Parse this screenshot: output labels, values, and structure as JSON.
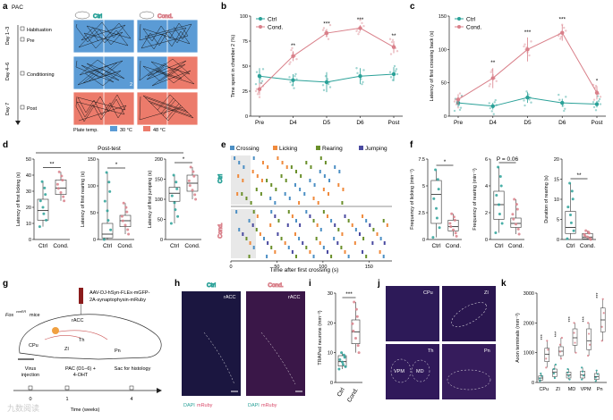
{
  "figure": {
    "panel_a": {
      "letter": "a",
      "title": "PAC",
      "days": [
        "Day 1–3",
        "Day 4–6",
        "Day 7"
      ],
      "phases": [
        "Habituation",
        "Pre",
        "Conditioning",
        "Post"
      ],
      "group_ctrl": "Ctrl",
      "group_cond": "Cond.",
      "plate_temp_label": "Plate temp.",
      "temp_cool": "30 °C",
      "temp_hot": "48 °C",
      "chamber_number": "2",
      "colors": {
        "cool": "#5b9bd5",
        "hot": "#ec7b6b"
      }
    },
    "panel_b": {
      "letter": "b",
      "legend_ctrl": "Ctrl",
      "legend_cond": "Cond.",
      "sig": [
        "**",
        "***",
        "***",
        "**"
      ]
    },
    "panel_c": {
      "letter": "c",
      "legend_ctrl": "Ctrl",
      "legend_cond": "Cond.",
      "sig": [
        "**",
        "***",
        "***",
        "*"
      ]
    },
    "panel_d": {
      "letter": "d",
      "title": "Post-test",
      "ylabels": [
        "Latency of first licking (s)",
        "Latency of first rearing (s)",
        "Latency of first jumping (s)"
      ],
      "xcats": [
        "Ctrl",
        "Cond."
      ],
      "sig": [
        "**",
        "*",
        "*"
      ]
    },
    "panel_e": {
      "letter": "e",
      "legend": [
        "Crossing",
        "Licking",
        "Rearing",
        "Jumping"
      ],
      "group_ctrl": "Ctrl",
      "group_cond": "Cond.",
      "xlabel": "Time after first crossing (s)",
      "xticks": [
        "0",
        "50",
        "100",
        "150"
      ],
      "colors": [
        "#4c8fc4",
        "#f08a3c",
        "#6a8f2a",
        "#4a4aa0"
      ]
    },
    "panel_f": {
      "letter": "f",
      "ylabels": [
        "Frequency of licking (min⁻¹)",
        "Frequency of rearing (min⁻¹)",
        "Duration of rearing (s)"
      ],
      "xcats": [
        "Ctrl",
        "Cond."
      ],
      "sig": [
        "*",
        "P = 0.06",
        "**"
      ]
    },
    "panel_g": {
      "letter": "g",
      "virus": "AAV-DJ-hSyn-FLEx-mGFP-",
      "virus2": "2A-synaptophysin-mRuby",
      "mice": "Fos",
      "mice_sup": "creER",
      "mice_suffix": " mice",
      "regions": [
        "rACC",
        "CPu",
        "Th",
        "ZI",
        "Pn"
      ],
      "tl_virus": "Virus",
      "tl_injection": "injection",
      "tl_pac": "PAC (D1–6) +",
      "tl_ohtt": "4-OHT",
      "tl_sac": "Sac for histology",
      "tl_ticks": [
        "0",
        "1",
        "4"
      ],
      "tl_xlabel": "Time (weeks)"
    },
    "panel_h": {
      "letter": "h",
      "ctrl": "Ctrl",
      "cond": "Cond.",
      "region": "rACC",
      "dapi": "DAPI",
      "mruby": "mRuby"
    },
    "panel_i": {
      "letter": "i",
      "ylabel": "TRAPed neurons (mm⁻²)",
      "xcats": [
        "Ctrl",
        "Cond."
      ],
      "sig": "***"
    },
    "panel_j": {
      "letter": "j",
      "regions": [
        "CPu",
        "ZI",
        "Th",
        "Pn"
      ],
      "subregions": [
        "VPM",
        "MD"
      ]
    },
    "panel_k": {
      "letter": "k",
      "ylabel": "Axon terminals (mm⁻²)",
      "xcats": [
        "CPu",
        "ZI",
        "MD",
        "VPM",
        "Pn"
      ],
      "sig": [
        "***",
        "***",
        "***",
        "***",
        "***"
      ]
    },
    "watermark": "九数阅读"
  },
  "chart_data": [
    {
      "panel": "b",
      "type": "line",
      "ylabel": "Time spent in chamber 2 (%)",
      "categories": [
        "Pre",
        "D4",
        "D5",
        "D6",
        "Post"
      ],
      "ylim": [
        0,
        100
      ],
      "yticks": [
        0,
        25,
        50,
        75,
        100
      ],
      "series": [
        {
          "name": "Ctrl",
          "values": [
            40,
            36,
            34,
            40,
            42
          ],
          "err": [
            8,
            6,
            10,
            8,
            7
          ]
        },
        {
          "name": "Cond.",
          "values": [
            27,
            60,
            83,
            88,
            69
          ],
          "err": [
            6,
            5,
            4,
            3,
            6
          ]
        }
      ]
    },
    {
      "panel": "c",
      "type": "line",
      "ylabel": "Latency of first crossing back (s)",
      "categories": [
        "Pre",
        "D4",
        "D5",
        "D6",
        "Post"
      ],
      "ylim": [
        0,
        150
      ],
      "yticks": [
        0,
        50,
        100,
        150
      ],
      "series": [
        {
          "name": "Ctrl",
          "values": [
            20,
            15,
            28,
            20,
            18
          ],
          "err": [
            6,
            5,
            8,
            6,
            5
          ]
        },
        {
          "name": "Cond.",
          "values": [
            25,
            57,
            100,
            125,
            35
          ],
          "err": [
            8,
            15,
            18,
            12,
            10
          ]
        }
      ]
    },
    {
      "panel": "d1",
      "type": "box",
      "ylabel": "Latency of first licking (s)",
      "categories": [
        "Ctrl",
        "Cond."
      ],
      "ylim": [
        0,
        50
      ],
      "yticks": [
        0,
        10,
        20,
        30,
        40,
        50
      ],
      "boxes": [
        {
          "q1": 12,
          "median": 18,
          "q3": 25,
          "min": 8,
          "max": 36
        },
        {
          "q1": 28,
          "median": 32,
          "q3": 37,
          "min": 24,
          "max": 42
        }
      ]
    },
    {
      "panel": "d2",
      "type": "box",
      "ylabel": "Latency of first rearing (s)",
      "categories": [
        "Ctrl",
        "Cond."
      ],
      "ylim": [
        0,
        150
      ],
      "yticks": [
        0,
        50,
        100,
        150
      ],
      "boxes": [
        {
          "q1": 3,
          "median": 10,
          "q3": 30,
          "min": 0,
          "max": 125
        },
        {
          "q1": 24,
          "median": 35,
          "q3": 45,
          "min": 10,
          "max": 68
        }
      ]
    },
    {
      "panel": "d3",
      "type": "box",
      "ylabel": "Latency of first jumping (s)",
      "categories": [
        "Ctrl",
        "Cond."
      ],
      "ylim": [
        0,
        200
      ],
      "yticks": [
        0,
        50,
        100,
        150,
        200
      ],
      "boxes": [
        {
          "q1": 95,
          "median": 115,
          "q3": 130,
          "min": 40,
          "max": 160
        },
        {
          "q1": 120,
          "median": 140,
          "q3": 160,
          "min": 100,
          "max": 180
        }
      ]
    },
    {
      "panel": "f1",
      "type": "box",
      "ylabel": "Frequency of licking (min⁻¹)",
      "categories": [
        "Ctrl",
        "Cond."
      ],
      "ylim": [
        0,
        7.5
      ],
      "yticks": [
        0,
        2.5,
        5.0,
        7.5
      ],
      "boxes": [
        {
          "q1": 1.5,
          "median": 4.2,
          "q3": 5.5,
          "min": 0.2,
          "max": 6.5
        },
        {
          "q1": 0.8,
          "median": 1.2,
          "q3": 1.8,
          "min": 0.3,
          "max": 2.4
        }
      ]
    },
    {
      "panel": "f2",
      "type": "box",
      "ylabel": "Frequency of rearing (min⁻¹)",
      "categories": [
        "Ctrl",
        "Cond."
      ],
      "ylim": [
        0,
        6
      ],
      "yticks": [
        0,
        2,
        4,
        6
      ],
      "boxes": [
        {
          "q1": 1.5,
          "median": 2.6,
          "q3": 3.6,
          "min": 0.5,
          "max": 5.4
        },
        {
          "q1": 0.9,
          "median": 1.2,
          "q3": 1.6,
          "min": 0.4,
          "max": 3.0
        }
      ]
    },
    {
      "panel": "f3",
      "type": "box",
      "ylabel": "Duration of rearing (s)",
      "categories": [
        "Ctrl",
        "Cond."
      ],
      "ylim": [
        0,
        20
      ],
      "yticks": [
        0,
        5,
        10,
        15,
        20
      ],
      "boxes": [
        {
          "q1": 1.5,
          "median": 3.0,
          "q3": 7.0,
          "min": 0.2,
          "max": 14.0
        },
        {
          "q1": 0.2,
          "median": 0.6,
          "q3": 1.5,
          "min": 0.0,
          "max": 2.2
        }
      ]
    },
    {
      "panel": "i",
      "type": "box",
      "ylabel": "TRAPed neurons (mm⁻²)",
      "categories": [
        "Ctrl",
        "Cond."
      ],
      "ylim": [
        0,
        30
      ],
      "yticks": [
        0,
        10,
        20,
        30
      ],
      "boxes": [
        {
          "q1": 5.5,
          "median": 7.0,
          "q3": 9.0,
          "min": 4.5,
          "max": 10
        },
        {
          "q1": 13,
          "median": 17,
          "q3": 21,
          "min": 10,
          "max": 27
        }
      ]
    },
    {
      "panel": "k",
      "type": "box",
      "ylabel": "Axon terminals (mm⁻²)",
      "categories": [
        "CPu",
        "ZI",
        "MD",
        "VPM",
        "Pn"
      ],
      "ylim": [
        0,
        3000
      ],
      "yticks": [
        0,
        1000,
        2000,
        3000
      ],
      "series": [
        {
          "name": "Ctrl",
          "boxes": [
            {
              "q1": 80,
              "median": 150,
              "q3": 220,
              "min": 50,
              "max": 300
            },
            {
              "q1": 200,
              "median": 350,
              "q3": 450,
              "min": 150,
              "max": 600
            },
            {
              "q1": 150,
              "median": 250,
              "q3": 350,
              "min": 100,
              "max": 450
            },
            {
              "q1": 150,
              "median": 250,
              "q3": 380,
              "min": 100,
              "max": 500
            },
            {
              "q1": 100,
              "median": 200,
              "q3": 300,
              "min": 50,
              "max": 400
            }
          ]
        },
        {
          "name": "Cond.",
          "boxes": [
            {
              "q1": 700,
              "median": 950,
              "q3": 1150,
              "min": 500,
              "max": 1400
            },
            {
              "q1": 900,
              "median": 1050,
              "q3": 1200,
              "min": 800,
              "max": 1500
            },
            {
              "q1": 1250,
              "median": 1500,
              "q3": 1800,
              "min": 1000,
              "max": 2000
            },
            {
              "q1": 1100,
              "median": 1400,
              "q3": 1800,
              "min": 900,
              "max": 2000
            },
            {
              "q1": 1700,
              "median": 2100,
              "q3": 2500,
              "min": 1400,
              "max": 2800
            }
          ]
        }
      ]
    }
  ]
}
